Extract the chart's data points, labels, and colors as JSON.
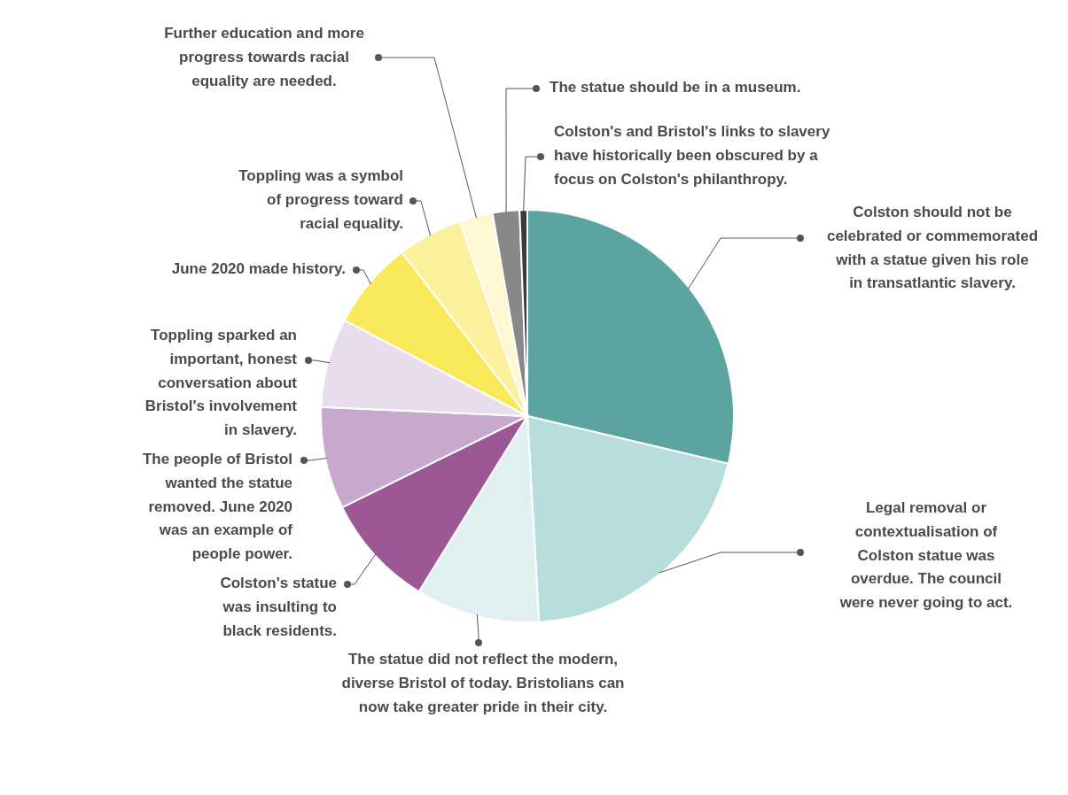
{
  "chart_data": {
    "type": "pie",
    "categories": [
      "Colston should not be celebrated or commemorated with a statue given his role in transatlantic slavery.",
      "Legal removal or contextualisation of Colston statue was overdue. The council were never going to act.",
      "The statue did not reflect the modern, diverse Bristol of today. Bristolians can now take greater pride in their city.",
      "Colston's statue was insulting to black residents.",
      "The people of Bristol wanted the statue removed. June 2020 was an example of people power.",
      "Toppling sparked an important, honest conversation about Bristol's involvement in slavery.",
      "June 2020 made history.",
      "Toppling was a symbol of progress toward racial equality.",
      "Further education and more progress towards racial equality are needed.",
      "The statue should be in a museum.",
      "Colston's and Bristol's links to slavery have historically been obscured by a focus on Colston's philanthropy."
    ],
    "values": [
      28.7,
      20.4,
      9.7,
      8.9,
      8.0,
      7.0,
      6.9,
      5.1,
      2.6,
      2.1,
      0.6
    ],
    "colors": [
      "#5ba4a0",
      "#b7dedc",
      "#e0f0f0",
      "#9b5894",
      "#c6a9cc",
      "#e8dced",
      "#f9e858",
      "#fbf19c",
      "#fdf8d3",
      "#888888",
      "#3a3a3a"
    ]
  }
}
